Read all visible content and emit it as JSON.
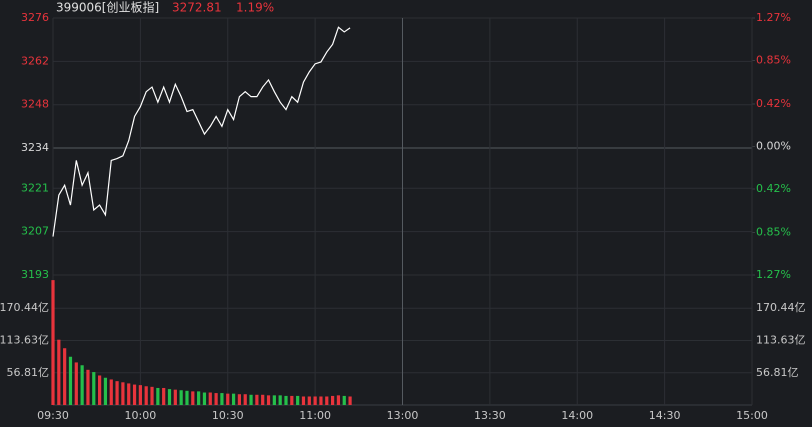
{
  "chart_data": {
    "type": "stock",
    "title": "399006[创业板指]",
    "price_label": "3272.81",
    "change_label": "1.19%",
    "up_color": "#e8343c",
    "down_color": "#25c04b",
    "x": [
      0,
      2,
      4,
      6,
      8,
      10,
      12,
      14,
      16,
      18,
      20,
      22,
      24,
      26,
      28,
      30,
      32,
      34,
      36,
      38,
      40,
      42,
      44,
      46,
      48,
      50,
      52,
      54,
      56,
      58,
      60,
      62,
      64,
      66,
      68,
      70,
      72,
      74,
      76,
      78,
      80,
      82,
      84,
      86,
      88,
      90,
      92,
      94,
      96,
      98,
      100,
      102
    ],
    "price": {
      "color": "#ffffff",
      "values": [
        3205.4,
        3218.8,
        3222,
        3215.6,
        3230,
        3222,
        3226,
        3214,
        3215.6,
        3212.4,
        3230,
        3230.6,
        3231.5,
        3236.4,
        3244.2,
        3247.4,
        3252.2,
        3253.7,
        3248.8,
        3253.7,
        3248.8,
        3254.6,
        3250.6,
        3245.8,
        3246.4,
        3242.5,
        3238.5,
        3241,
        3244.2,
        3241,
        3246.4,
        3243.2,
        3250.6,
        3252.2,
        3250.6,
        3250.6,
        3253.7,
        3256,
        3252.2,
        3248.8,
        3246.4,
        3250.6,
        3248.8,
        3255.3,
        3258.6,
        3261.2,
        3261.8,
        3265,
        3267.5,
        3273,
        3271.5,
        3272.81
      ]
    },
    "volume": {
      "values": [
        220,
        115,
        100,
        85,
        75,
        70,
        62,
        58,
        52,
        48,
        45,
        42,
        40,
        38,
        36,
        35,
        33,
        32,
        30,
        30,
        28,
        27,
        26,
        25,
        24,
        24,
        22,
        22,
        21,
        21,
        20,
        20,
        19,
        19,
        18,
        18,
        18,
        17,
        17,
        17,
        16,
        16,
        16,
        15,
        15,
        15,
        15,
        15,
        16,
        17,
        16,
        15
      ]
    },
    "xlim": [
      0,
      240
    ],
    "xticks": [
      {
        "value": 0,
        "label": "09:30"
      },
      {
        "value": 30,
        "label": "10:00"
      },
      {
        "value": 60,
        "label": "10:30"
      },
      {
        "value": 90,
        "label": "11:00"
      },
      {
        "value": 120,
        "label": "13:00"
      },
      {
        "value": 150,
        "label": "13:30"
      },
      {
        "value": 180,
        "label": "14:00"
      },
      {
        "value": 210,
        "label": "14:30"
      },
      {
        "value": 240,
        "label": "15:00"
      }
    ],
    "ylim": [
      3193,
      3276
    ],
    "yticks": [
      3276,
      3262,
      3248,
      3234,
      3221,
      3207,
      3193
    ],
    "y2lim": [
      -1.27,
      1.27
    ],
    "y2ticks": [
      {
        "value": 1.27,
        "label": "1.27%"
      },
      {
        "value": 0.85,
        "label": "0.85%"
      },
      {
        "value": 0.42,
        "label": "0.42%"
      },
      {
        "value": 0,
        "label": "0.00%"
      },
      {
        "value": -0.42,
        "label": "0.42%"
      },
      {
        "value": -0.85,
        "label": "0.85%"
      },
      {
        "value": -1.27,
        "label": "1.27%"
      }
    ],
    "vol_ylim": [
      0,
      227.25
    ],
    "vol_ticks": [
      {
        "value": 170.44,
        "label": "170.44亿"
      },
      {
        "value": 113.63,
        "label": "113.63亿"
      },
      {
        "value": 56.81,
        "label": "56.81亿"
      }
    ]
  }
}
